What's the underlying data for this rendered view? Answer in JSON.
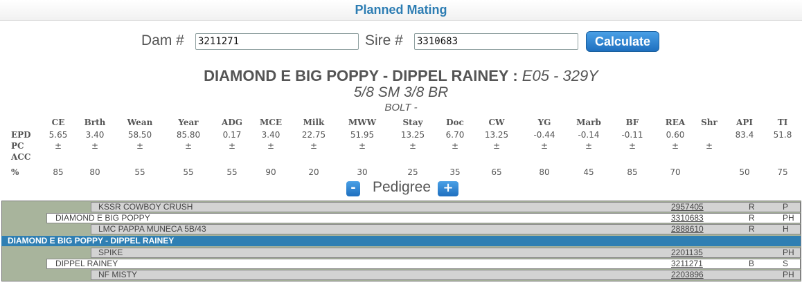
{
  "header": {
    "title": "Planned Mating"
  },
  "form": {
    "dam_label": "Dam #",
    "dam_value": "3211271",
    "sire_label": "Sire #",
    "sire_value": "3310683",
    "calculate_label": "Calculate"
  },
  "mating": {
    "names": "DIAMOND E BIG POPPY - DIPPEL RAINEY :",
    "ids": "E05 - 329Y",
    "breed": "5/8 SM 3/8 BR",
    "bolt": "BOLT -"
  },
  "epd_table": {
    "row_labels": {
      "epd": "EPD",
      "pc": "PC",
      "acc": "ACC",
      "pct": "%"
    },
    "columns": [
      {
        "name": "CE",
        "epd": "5.65",
        "pc": "±",
        "pct": "85"
      },
      {
        "name": "Brth",
        "epd": "3.40",
        "pc": "±",
        "pct": "80"
      },
      {
        "name": "Wean",
        "epd": "58.50",
        "pc": "±",
        "pct": "55"
      },
      {
        "name": "Year",
        "epd": "85.80",
        "pc": "±",
        "pct": "55"
      },
      {
        "name": "ADG",
        "epd": "0.17",
        "pc": "±",
        "pct": "55"
      },
      {
        "name": "MCE",
        "epd": "3.40",
        "pc": "±",
        "pct": "90"
      },
      {
        "name": "Milk",
        "epd": "22.75",
        "pc": "±",
        "pct": "20"
      },
      {
        "name": "MWW",
        "epd": "51.95",
        "pc": "±",
        "pct": "30"
      },
      {
        "name": "Stay",
        "epd": "13.25",
        "pc": "±",
        "pct": "25"
      },
      {
        "name": "Doc",
        "epd": "6.70",
        "pc": "±",
        "pct": "35"
      },
      {
        "name": "CW",
        "epd": "13.25",
        "pc": "±",
        "pct": "65"
      },
      {
        "name": "YG",
        "epd": "-0.44",
        "pc": "±",
        "pct": "80"
      },
      {
        "name": "Marb",
        "epd": "-0.14",
        "pc": "±",
        "pct": "45"
      },
      {
        "name": "BF",
        "epd": "-0.11",
        "pc": "±",
        "pct": "85"
      },
      {
        "name": "REA",
        "epd": "0.60",
        "pc": "±",
        "pct": "70"
      },
      {
        "name": "Shr",
        "epd": "",
        "pc": "±",
        "pct": ""
      },
      {
        "name": "API",
        "epd": "83.4",
        "pc": "",
        "pct": "50"
      },
      {
        "name": "TI",
        "epd": "51.8",
        "pc": "",
        "pct": "75"
      }
    ]
  },
  "pedigree": {
    "title": "Pedigree",
    "minus_label": "-",
    "plus_label": "+",
    "rows": [
      {
        "name": "KSSR COWBOY CRUSH",
        "reg": "2957405",
        "code": "R",
        "hp": "P"
      },
      {
        "name": "DIAMOND E BIG POPPY",
        "reg": "3310683",
        "code": "R",
        "hp": "PH"
      },
      {
        "name": "LMC PAPPA MUNECA 5B/43",
        "reg": "2888610",
        "code": "R",
        "hp": "H"
      },
      {
        "name": "DIAMOND E BIG POPPY - DIPPEL RAINEY",
        "reg": "",
        "code": "",
        "hp": ""
      },
      {
        "name": "SPIKE",
        "reg": "2201135",
        "code": "",
        "hp": "PH"
      },
      {
        "name": "DIPPEL RAINEY",
        "reg": "3211271",
        "code": "B",
        "hp": "S"
      },
      {
        "name": "NF MISTY",
        "reg": "2203896",
        "code": "",
        "hp": "PH"
      }
    ]
  }
}
